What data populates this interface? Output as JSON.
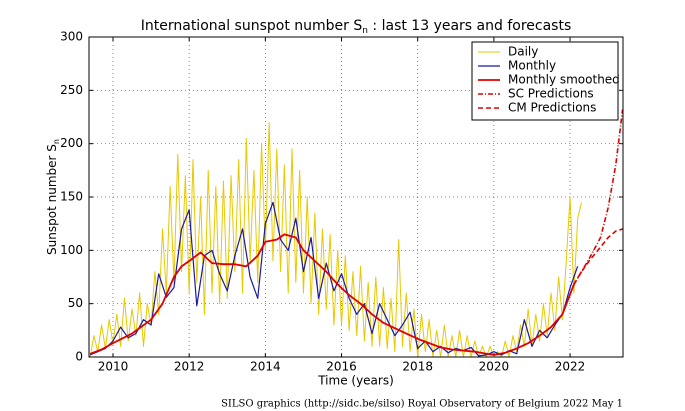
{
  "chart_data": {
    "type": "line",
    "title": "International sunspot number S",
    "title_subscript": "n",
    "title_suffix": " : last 13 years and forecasts",
    "ylabel": "Sunspot number S",
    "ylabel_subscript": "n",
    "xlabel": "Time (years)",
    "footer": "SILSO graphics (http://sidc.be/silso)  Royal Observatory of Belgium  2022 May 1",
    "xlim": [
      2009.37,
      2023.39
    ],
    "xticks": [
      2010,
      2012,
      2014,
      2016,
      2018,
      2020,
      2022
    ],
    "ylim": [
      0,
      300
    ],
    "yticks": [
      0,
      50,
      100,
      150,
      200,
      250,
      300
    ],
    "grid": true,
    "legend": "upper right",
    "series": [
      {
        "name": "Daily",
        "color": "#e8c800",
        "style": "solid",
        "width": 1,
        "x": [
          2009.4,
          2009.5,
          2009.6,
          2009.7,
          2009.8,
          2009.9,
          2010.0,
          2010.1,
          2010.2,
          2010.3,
          2010.4,
          2010.5,
          2010.6,
          2010.7,
          2010.8,
          2010.9,
          2011.0,
          2011.1,
          2011.2,
          2011.3,
          2011.4,
          2011.5,
          2011.6,
          2011.7,
          2011.8,
          2011.9,
          2012.0,
          2012.1,
          2012.2,
          2012.3,
          2012.4,
          2012.5,
          2012.6,
          2012.7,
          2012.8,
          2012.9,
          2013.0,
          2013.1,
          2013.2,
          2013.3,
          2013.4,
          2013.5,
          2013.6,
          2013.7,
          2013.8,
          2013.9,
          2014.0,
          2014.1,
          2014.2,
          2014.3,
          2014.4,
          2014.5,
          2014.6,
          2014.7,
          2014.8,
          2014.9,
          2015.0,
          2015.1,
          2015.2,
          2015.3,
          2015.4,
          2015.5,
          2015.6,
          2015.7,
          2015.8,
          2015.9,
          2016.0,
          2016.1,
          2016.2,
          2016.3,
          2016.4,
          2016.5,
          2016.6,
          2016.7,
          2016.8,
          2016.9,
          2017.0,
          2017.1,
          2017.2,
          2017.3,
          2017.4,
          2017.5,
          2017.6,
          2017.7,
          2017.8,
          2017.9,
          2018.0,
          2018.1,
          2018.2,
          2018.3,
          2018.4,
          2018.5,
          2018.6,
          2018.7,
          2018.8,
          2018.9,
          2019.0,
          2019.1,
          2019.2,
          2019.3,
          2019.4,
          2019.5,
          2019.6,
          2019.7,
          2019.8,
          2019.9,
          2020.0,
          2020.1,
          2020.2,
          2020.3,
          2020.4,
          2020.5,
          2020.6,
          2020.7,
          2020.8,
          2020.9,
          2021.0,
          2021.1,
          2021.2,
          2021.3,
          2021.4,
          2021.5,
          2021.6,
          2021.7,
          2021.8,
          2021.9,
          2022.0,
          2022.1,
          2022.2,
          2022.3
        ],
        "values": [
          0,
          20,
          5,
          30,
          8,
          35,
          12,
          40,
          10,
          55,
          15,
          45,
          20,
          60,
          10,
          50,
          30,
          80,
          40,
          120,
          60,
          160,
          70,
          190,
          80,
          170,
          60,
          185,
          70,
          150,
          40,
          175,
          60,
          160,
          50,
          165,
          55,
          170,
          80,
          185,
          60,
          205,
          90,
          175,
          70,
          200,
          100,
          220,
          90,
          195,
          80,
          180,
          60,
          195,
          70,
          175,
          60,
          150,
          50,
          135,
          40,
          120,
          45,
          115,
          30,
          100,
          30,
          95,
          25,
          80,
          20,
          85,
          15,
          70,
          10,
          75,
          10,
          65,
          8,
          55,
          5,
          110,
          10,
          60,
          5,
          45,
          0,
          40,
          5,
          35,
          0,
          25,
          0,
          30,
          0,
          20,
          0,
          25,
          0,
          20,
          0,
          15,
          0,
          10,
          0,
          10,
          0,
          5,
          0,
          15,
          0,
          20,
          5,
          30,
          10,
          45,
          10,
          40,
          15,
          50,
          20,
          60,
          25,
          75,
          35,
          90,
          150,
          60,
          130,
          145
        ]
      },
      {
        "name": "Monthly",
        "color": "#1a1a9e",
        "style": "solid",
        "width": 1.2,
        "x": [
          2009.4,
          2009.6,
          2009.8,
          2010.0,
          2010.2,
          2010.4,
          2010.6,
          2010.8,
          2011.0,
          2011.2,
          2011.4,
          2011.6,
          2011.8,
          2012.0,
          2012.2,
          2012.4,
          2012.6,
          2012.8,
          2013.0,
          2013.2,
          2013.4,
          2013.6,
          2013.8,
          2014.0,
          2014.2,
          2014.4,
          2014.6,
          2014.8,
          2015.0,
          2015.2,
          2015.4,
          2015.6,
          2015.8,
          2016.0,
          2016.2,
          2016.4,
          2016.6,
          2016.8,
          2017.0,
          2017.2,
          2017.4,
          2017.6,
          2017.8,
          2018.0,
          2018.2,
          2018.4,
          2018.6,
          2018.8,
          2019.0,
          2019.2,
          2019.4,
          2019.6,
          2019.8,
          2020.0,
          2020.2,
          2020.4,
          2020.6,
          2020.8,
          2021.0,
          2021.2,
          2021.4,
          2021.6,
          2021.8,
          2022.0,
          2022.2
        ],
        "values": [
          2,
          5,
          8,
          15,
          28,
          18,
          22,
          35,
          30,
          78,
          56,
          65,
          120,
          138,
          48,
          95,
          100,
          78,
          62,
          95,
          120,
          75,
          55,
          125,
          145,
          110,
          100,
          130,
          80,
          112,
          55,
          88,
          62,
          78,
          55,
          40,
          50,
          22,
          50,
          35,
          20,
          30,
          42,
          8,
          15,
          5,
          10,
          4,
          8,
          6,
          9,
          1,
          2,
          5,
          2,
          6,
          3,
          35,
          10,
          25,
          18,
          30,
          40,
          65,
          85
        ]
      },
      {
        "name": "Monthly smoothed",
        "color": "#e00000",
        "style": "solid",
        "width": 1.8,
        "x": [
          2009.4,
          2009.7,
          2010.0,
          2010.5,
          2011.0,
          2011.3,
          2011.6,
          2011.8,
          2012.0,
          2012.3,
          2012.6,
          2012.9,
          2013.2,
          2013.5,
          2013.8,
          2014.0,
          2014.3,
          2014.5,
          2014.8,
          2015.0,
          2015.3,
          2015.6,
          2015.9,
          2016.2,
          2016.5,
          2016.8,
          2017.1,
          2017.4,
          2017.7,
          2018.0,
          2018.3,
          2018.6,
          2018.9,
          2019.2,
          2019.5,
          2019.8,
          2020.0,
          2020.3,
          2020.6,
          2020.9,
          2021.2,
          2021.5,
          2021.8,
          2022.1
        ],
        "values": [
          3,
          7,
          13,
          22,
          35,
          50,
          75,
          85,
          90,
          98,
          88,
          87,
          87,
          85,
          95,
          108,
          110,
          115,
          112,
          100,
          90,
          80,
          68,
          58,
          50,
          40,
          32,
          27,
          22,
          17,
          13,
          9,
          7,
          6,
          5,
          3,
          2,
          4,
          8,
          13,
          20,
          28,
          40,
          68
        ]
      },
      {
        "name": "SC Predictions",
        "color": "#e00000",
        "style": "dashdot",
        "width": 1.6,
        "x": [
          2022.1,
          2022.3,
          2022.5,
          2022.8,
          2023.0,
          2023.2,
          2023.38
        ],
        "values": [
          68,
          80,
          92,
          112,
          140,
          180,
          232
        ]
      },
      {
        "name": "CM Predictions",
        "color": "#e00000",
        "style": "dashed",
        "width": 1.6,
        "x": [
          2022.1,
          2022.3,
          2022.5,
          2022.8,
          2023.0,
          2023.2,
          2023.38
        ],
        "values": [
          68,
          80,
          90,
          103,
          112,
          118,
          120
        ]
      }
    ]
  }
}
